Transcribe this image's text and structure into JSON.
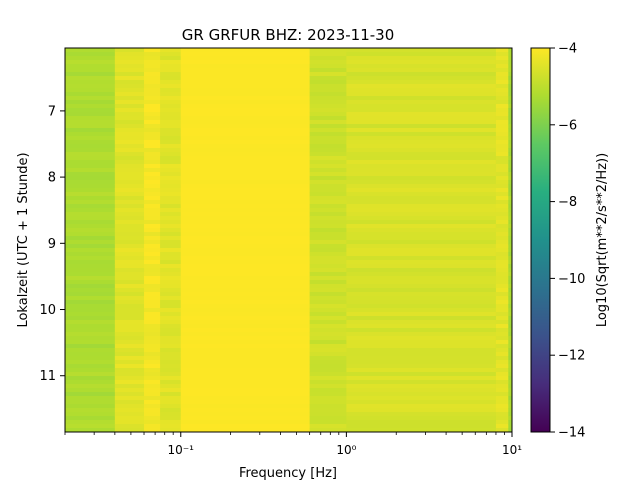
{
  "chart_data": {
    "type": "heatmap",
    "title": "GR GRFUR  BHZ: 2023-11-30",
    "xlabel": "Frequency [Hz]",
    "ylabel": "Lokalzeit (UTC + 1 Stunde)",
    "colorbar_label": "Log10(Sqrt(m**2/s**2/Hz))",
    "colormap": "viridis",
    "x_scale": "log",
    "xlim": [
      0.02,
      10
    ],
    "x_ticks": [
      {
        "value": 0.1,
        "label": "10⁻¹"
      },
      {
        "value": 1,
        "label": "10⁰"
      },
      {
        "value": 10,
        "label": "10¹"
      }
    ],
    "ylim": [
      6.05,
      11.85
    ],
    "y_inverted": true,
    "y_ticks": [
      7,
      8,
      9,
      10,
      11
    ],
    "clim": [
      -14,
      -4
    ],
    "colorbar_ticks": [
      -4,
      -6,
      -8,
      -10,
      -12,
      -14
    ],
    "colorbar_tick_labels": [
      "−4",
      "−6",
      "−8",
      "−10",
      "−12",
      "−14"
    ],
    "frequency_bands": [
      {
        "f_min": 0.02,
        "f_max": 0.04,
        "value": -5.25
      },
      {
        "f_min": 0.04,
        "f_max": 0.06,
        "value": -4.45
      },
      {
        "f_min": 0.06,
        "f_max": 0.075,
        "value": -4.15
      },
      {
        "f_min": 0.075,
        "f_max": 0.1,
        "value": -4.45
      },
      {
        "f_min": 0.1,
        "f_max": 0.6,
        "value": -4.02
      },
      {
        "f_min": 0.6,
        "f_max": 1.0,
        "value": -4.75
      },
      {
        "f_min": 1.0,
        "f_max": 8.0,
        "value": -4.6
      },
      {
        "f_min": 8.0,
        "f_max": 9.5,
        "value": -4.4
      },
      {
        "f_min": 9.5,
        "f_max": 10,
        "value": -5.3
      }
    ]
  }
}
